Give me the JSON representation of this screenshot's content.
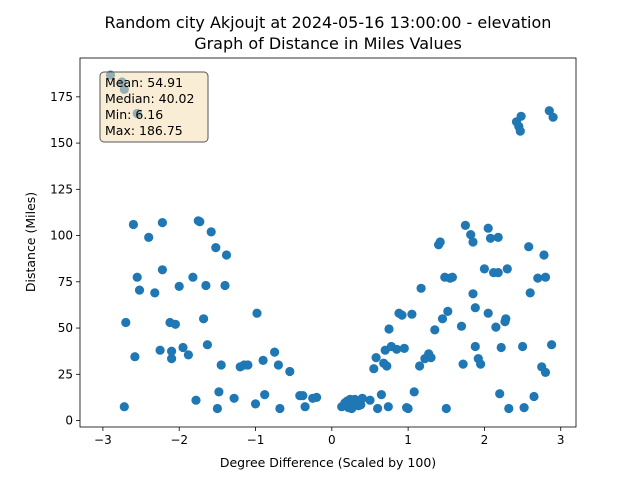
{
  "chart_data": {
    "type": "scatter",
    "title_line1": "Random city Akjoujt at 2024-05-16 13:00:00  - elevation",
    "title_line2": "Graph of Distance in Miles Values",
    "xlabel": "Degree Difference (Scaled by 100)",
    "ylabel": "Distance (Miles)",
    "xlim": [
      -3.3,
      3.2
    ],
    "ylim": [
      -3.5,
      196
    ],
    "xticks": [
      -3,
      -2,
      -1,
      0,
      1,
      2,
      3
    ],
    "yticks": [
      0,
      25,
      50,
      75,
      100,
      125,
      150,
      175
    ],
    "grid": false,
    "point_color": "#1f77b4",
    "stats_box": {
      "mean": "Mean: 54.91",
      "median": "Median: 40.02",
      "min": "Min: 6.16",
      "max": "Max: 186.75",
      "placement": "top-left"
    },
    "points": [
      [
        -2.9,
        186.75
      ],
      [
        -2.75,
        183
      ],
      [
        -2.72,
        179
      ],
      [
        -2.55,
        166
      ],
      [
        -2.72,
        7.5
      ],
      [
        -2.7,
        53
      ],
      [
        -2.6,
        106
      ],
      [
        -2.58,
        34.5
      ],
      [
        -2.55,
        77.5
      ],
      [
        -2.52,
        70.5
      ],
      [
        -2.4,
        99
      ],
      [
        -2.32,
        69
      ],
      [
        -2.25,
        38
      ],
      [
        -2.22,
        107
      ],
      [
        -2.22,
        81.5
      ],
      [
        -2.12,
        53
      ],
      [
        -2.1,
        37.5
      ],
      [
        -2.1,
        33.5
      ],
      [
        -2.05,
        52
      ],
      [
        -2.0,
        72.5
      ],
      [
        -1.95,
        39.5
      ],
      [
        -1.88,
        35.5
      ],
      [
        -1.82,
        77.5
      ],
      [
        -1.78,
        11
      ],
      [
        -1.75,
        108
      ],
      [
        -1.73,
        107.5
      ],
      [
        -1.68,
        55
      ],
      [
        -1.65,
        73
      ],
      [
        -1.63,
        41
      ],
      [
        -1.58,
        102
      ],
      [
        -1.52,
        93.5
      ],
      [
        -1.5,
        6.5
      ],
      [
        -1.48,
        15.5
      ],
      [
        -1.45,
        30
      ],
      [
        -1.4,
        73
      ],
      [
        -1.38,
        89.5
      ],
      [
        -1.28,
        12
      ],
      [
        -1.2,
        29
      ],
      [
        -1.15,
        30
      ],
      [
        -1.1,
        30
      ],
      [
        -1.0,
        9
      ],
      [
        -0.98,
        58
      ],
      [
        -0.9,
        32.5
      ],
      [
        -0.88,
        14
      ],
      [
        -0.75,
        37
      ],
      [
        -0.7,
        30
      ],
      [
        -0.68,
        6.5
      ],
      [
        -0.55,
        26.5
      ],
      [
        -0.42,
        13.5
      ],
      [
        -0.38,
        13.5
      ],
      [
        -0.35,
        7.5
      ],
      [
        -0.25,
        12
      ],
      [
        -0.2,
        12.5
      ],
      [
        0.13,
        7.5
      ],
      [
        0.17,
        9.5
      ],
      [
        0.2,
        10.5
      ],
      [
        0.22,
        7
      ],
      [
        0.24,
        11.5
      ],
      [
        0.27,
        9
      ],
      [
        0.3,
        11.5
      ],
      [
        0.26,
        6.5
      ],
      [
        0.35,
        8
      ],
      [
        0.38,
        8.5
      ],
      [
        0.4,
        12
      ],
      [
        0.5,
        11
      ],
      [
        0.55,
        28
      ],
      [
        0.58,
        34
      ],
      [
        0.6,
        6.5
      ],
      [
        0.65,
        14
      ],
      [
        0.68,
        31
      ],
      [
        0.7,
        38
      ],
      [
        0.72,
        29.5
      ],
      [
        0.75,
        49.5
      ],
      [
        0.78,
        40
      ],
      [
        0.74,
        7.5
      ],
      [
        0.85,
        38.5
      ],
      [
        0.88,
        58
      ],
      [
        0.92,
        57
      ],
      [
        0.95,
        39
      ],
      [
        0.98,
        7
      ],
      [
        1.0,
        6.5
      ],
      [
        1.05,
        57.5
      ],
      [
        1.08,
        15.5
      ],
      [
        1.15,
        29.5
      ],
      [
        1.17,
        71.5
      ],
      [
        1.22,
        33.5
      ],
      [
        1.27,
        36
      ],
      [
        1.3,
        34
      ],
      [
        1.35,
        49
      ],
      [
        1.4,
        95
      ],
      [
        1.42,
        96.5
      ],
      [
        1.45,
        55
      ],
      [
        1.48,
        77.5
      ],
      [
        1.5,
        6.5
      ],
      [
        1.52,
        59
      ],
      [
        1.55,
        77
      ],
      [
        1.58,
        77.5
      ],
      [
        1.7,
        51
      ],
      [
        1.72,
        30.5
      ],
      [
        1.75,
        105.5
      ],
      [
        1.82,
        100.5
      ],
      [
        1.85,
        96.5
      ],
      [
        1.85,
        68.5
      ],
      [
        1.88,
        61
      ],
      [
        1.88,
        40
      ],
      [
        1.92,
        33.5
      ],
      [
        1.95,
        30.5
      ],
      [
        2.0,
        82
      ],
      [
        2.05,
        104
      ],
      [
        2.05,
        58
      ],
      [
        2.08,
        98.5
      ],
      [
        2.12,
        80
      ],
      [
        2.15,
        50.5
      ],
      [
        2.18,
        80
      ],
      [
        2.18,
        99
      ],
      [
        2.2,
        14.5
      ],
      [
        2.22,
        39.5
      ],
      [
        2.27,
        53.5
      ],
      [
        2.28,
        55
      ],
      [
        2.3,
        82
      ],
      [
        2.32,
        6.5
      ],
      [
        2.42,
        161.5
      ],
      [
        2.45,
        159
      ],
      [
        2.47,
        156.5
      ],
      [
        2.48,
        164.5
      ],
      [
        2.5,
        40
      ],
      [
        2.52,
        7
      ],
      [
        2.58,
        94
      ],
      [
        2.6,
        69
      ],
      [
        2.65,
        13
      ],
      [
        2.7,
        77
      ],
      [
        2.75,
        29
      ],
      [
        2.78,
        89.5
      ],
      [
        2.8,
        26
      ],
      [
        2.8,
        77.5
      ],
      [
        2.85,
        167.5
      ],
      [
        2.88,
        41
      ],
      [
        2.9,
        164
      ]
    ]
  }
}
